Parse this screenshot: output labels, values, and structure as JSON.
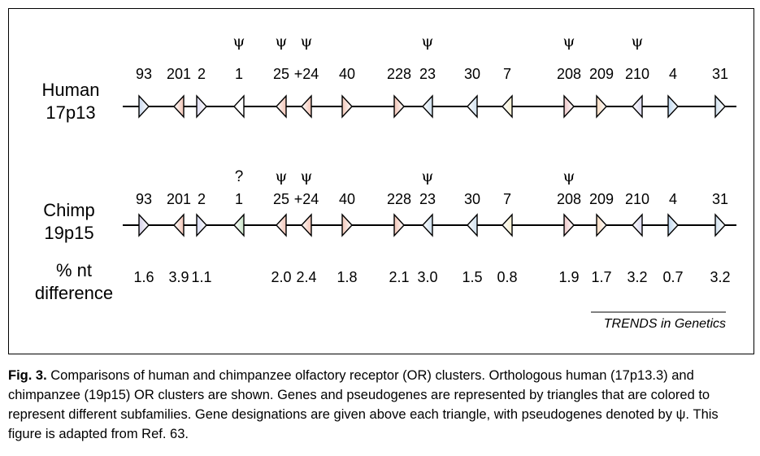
{
  "figure": {
    "rows": [
      {
        "label_line1": "Human",
        "label_line2": "17p13",
        "genes": [
          {
            "name": "93",
            "dir": "right",
            "color": "#c9d8ee",
            "psi": false
          },
          {
            "name": "201",
            "dir": "left",
            "color": "#f2c3b4",
            "psi": false
          },
          {
            "name": "2",
            "dir": "right",
            "color": "#dcdaf0",
            "psi": false
          },
          {
            "name": "1",
            "dir": "left",
            "color": "#ffffff",
            "psi": true
          },
          {
            "name": "25",
            "dir": "left",
            "color": "#f2c3b4",
            "psi": true
          },
          {
            "name": "+24",
            "dir": "left",
            "color": "#f2c3b4",
            "psi": true
          },
          {
            "name": "40",
            "dir": "right",
            "color": "#f2c7b8",
            "psi": false
          },
          {
            "name": "228",
            "dir": "right",
            "color": "#f2c3b4",
            "psi": false
          },
          {
            "name": "23",
            "dir": "left",
            "color": "#cfe0ee",
            "psi": true
          },
          {
            "name": "30",
            "dir": "left",
            "color": "#cfe0ee",
            "psi": false
          },
          {
            "name": "7",
            "dir": "left",
            "color": "#f5efd0",
            "psi": false
          },
          {
            "name": "208",
            "dir": "right",
            "color": "#f0c7c9",
            "psi": true
          },
          {
            "name": "209",
            "dir": "right",
            "color": "#f5d8bd",
            "psi": false
          },
          {
            "name": "210",
            "dir": "left",
            "color": "#dcdaf0",
            "psi": true
          },
          {
            "name": "4",
            "dir": "right",
            "color": "#bcd6ee",
            "psi": false
          },
          {
            "name": "31",
            "dir": "right",
            "color": "#cfe0ee",
            "psi": false
          }
        ]
      },
      {
        "label_line1": "Chimp",
        "label_line2": "19p15",
        "genes": [
          {
            "name": "93",
            "dir": "right",
            "color": "#d4cfe8",
            "psi": false
          },
          {
            "name": "201",
            "dir": "left",
            "color": "#f2c3b4",
            "psi": false
          },
          {
            "name": "2",
            "dir": "right",
            "color": "#d4d8f0",
            "psi": false
          },
          {
            "name": "1",
            "dir": "left",
            "color": "#c8e3c6",
            "psi": false,
            "mark": "?"
          },
          {
            "name": "25",
            "dir": "left",
            "color": "#f2c3b4",
            "psi": true
          },
          {
            "name": "+24",
            "dir": "left",
            "color": "#f2c3b4",
            "psi": true
          },
          {
            "name": "40",
            "dir": "right",
            "color": "#f2c7b8",
            "psi": false
          },
          {
            "name": "228",
            "dir": "right",
            "color": "#f2c3b4",
            "psi": false
          },
          {
            "name": "23",
            "dir": "left",
            "color": "#cfe0ee",
            "psi": true
          },
          {
            "name": "30",
            "dir": "left",
            "color": "#cfe0ee",
            "psi": false
          },
          {
            "name": "7",
            "dir": "left",
            "color": "#f5efd0",
            "psi": false
          },
          {
            "name": "208",
            "dir": "right",
            "color": "#f0c7c9",
            "psi": true
          },
          {
            "name": "209",
            "dir": "right",
            "color": "#f5d8bd",
            "psi": false
          },
          {
            "name": "210",
            "dir": "left",
            "color": "#dcdaf0",
            "psi": false
          },
          {
            "name": "4",
            "dir": "right",
            "color": "#bcd6ee",
            "psi": false
          },
          {
            "name": "31",
            "dir": "right",
            "color": "#cfe0ee",
            "psi": false
          }
        ]
      }
    ],
    "psi_symbol": "ψ",
    "difference_label_line1": "% nt",
    "difference_label_line2": "difference",
    "differences": [
      "1.6",
      "3.9",
      "1.1",
      "",
      "2.0",
      "2.4",
      "1.8",
      "2.1",
      "3.0",
      "1.5",
      "0.8",
      "1.9",
      "1.7",
      "3.2",
      "0.7",
      "3.2"
    ],
    "credit": "TRENDS in Genetics"
  },
  "caption": {
    "label": "Fig. 3.",
    "text": " Comparisons of human and chimpanzee olfactory receptor (OR) clusters. Orthologous human (17p13.3) and chimpanzee (19p15) OR clusters are shown. Genes and pseudogenes are represented by triangles that are colored to represent different subfamilies. Gene designations are given above each triangle, with pseudogenes denoted by ψ. This figure is adapted from Ref. 63."
  }
}
